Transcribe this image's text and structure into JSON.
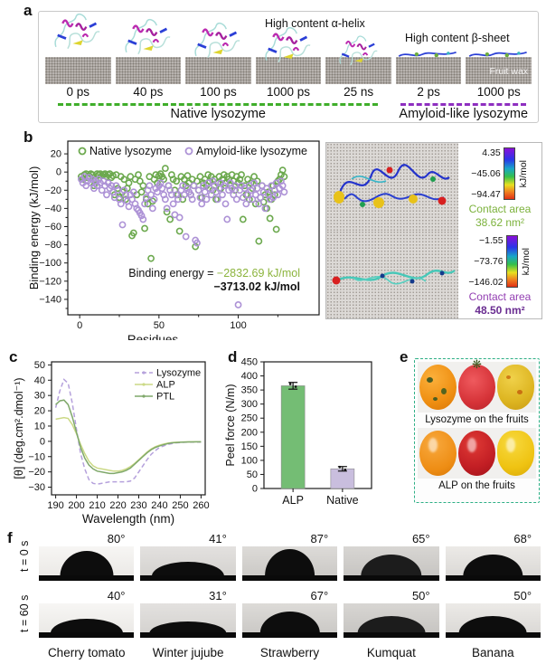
{
  "colors": {
    "green_accent": "#3fae2a",
    "purple_accent": "#8e2fc0",
    "scatter_green": "#6ca94e",
    "scatter_purple": "#ad92d6",
    "bar_green": "#74bd74",
    "bar_purple": "#c9bede",
    "dash_border_teal": "#2eb086",
    "text_green": "#8cb43d",
    "text_purple": "#7c3da6"
  },
  "panels": {
    "a": {
      "label": "a",
      "annotation_alpha": "High content α-helix",
      "annotation_beta": "High content β-sheet",
      "fruit_wax_label": "Fruit wax",
      "snapshots": [
        {
          "time": "0 ps",
          "group": "native"
        },
        {
          "time": "40 ps",
          "group": "native"
        },
        {
          "time": "100 ps",
          "group": "native"
        },
        {
          "time": "1000 ps",
          "group": "native"
        },
        {
          "time": "25 ns",
          "group": "native"
        },
        {
          "time": "2 ps",
          "group": "amyloid"
        },
        {
          "time": "1000 ps",
          "group": "amyloid",
          "wax": true
        }
      ],
      "groups": [
        {
          "name": "Native lysozyme",
          "color": "#3fae2a"
        },
        {
          "name": "Amyloid-like lysozyme",
          "color": "#8e2fc0"
        }
      ]
    },
    "b": {
      "label": "b",
      "annotation": {
        "prefix": "Binding energy = ",
        "value1": "−2832.69 kJ/mol",
        "value2": "−3713.02 kJ/mol",
        "color1": "#8cb43d",
        "color2": "#7c3da6"
      }
    },
    "b_right": {
      "cards": [
        {
          "colorbar_labels": [
            "4.35",
            "−45.06",
            "−94.47"
          ],
          "unit": "kJ/mol",
          "contact_label": "Contact area",
          "contact_value": "38.62 nm²",
          "theme": "green"
        },
        {
          "colorbar_labels": [
            "−1.55",
            "−73.76",
            "−146.02"
          ],
          "unit": "kJ/mol",
          "contact_label": "Contact area",
          "contact_value": "48.50 nm²",
          "theme": "purple"
        }
      ]
    },
    "c": {
      "label": "c"
    },
    "d": {
      "label": "d"
    },
    "e": {
      "label": "e",
      "captions": [
        "Lysozyme on the fruits",
        "ALP on the fruits"
      ]
    },
    "f": {
      "label": "f",
      "row_labels": [
        "t = 0 s",
        "t = 60 s"
      ],
      "angles_t0": [
        "80°",
        "41°",
        "87°",
        "65°",
        "68°"
      ],
      "angles_t60": [
        "40°",
        "31°",
        "67°",
        "50°",
        "50°"
      ],
      "columns": [
        "Cherry tomato",
        "Winter jujube",
        "Strawberry",
        "Kumquat",
        "Banana"
      ]
    }
  },
  "chart_data": [
    {
      "type": "scatter",
      "title": "",
      "xlabel": "Residues",
      "ylabel": "Binding energy (kJ/mol)",
      "xlim": [
        -7.5,
        151
      ],
      "ylim": [
        -157,
        34
      ],
      "xticks": [
        0,
        50,
        100
      ],
      "xminor": [
        25,
        75,
        125
      ],
      "yticks": [
        20,
        0,
        -20,
        -40,
        -60,
        -80,
        -100,
        -120,
        -140
      ],
      "legend_position": "top-inside",
      "grid": false,
      "series": [
        {
          "name": "Native lysozyme",
          "color": "#6ca94e",
          "y": [
            -5,
            -8,
            -3,
            -2,
            -6,
            -4,
            -2,
            -3,
            -15,
            -8,
            -2,
            -3,
            -2,
            -4,
            -3,
            -2,
            -5,
            -3,
            -2,
            -6,
            -4,
            -25,
            -3,
            -18,
            -28,
            -5,
            -22,
            -8,
            -30,
            -18,
            -12,
            -5,
            -70,
            -67,
            -8,
            -25,
            -3,
            -10,
            -22,
            -15,
            -62,
            -30,
            -35,
            -5,
            -95,
            -32,
            -8,
            -3,
            -12,
            -4,
            -2,
            -5,
            -8,
            4,
            -44,
            -15,
            -52,
            -3,
            -8,
            -20,
            -10,
            -25,
            -65,
            -5,
            -30,
            -8,
            -15,
            -4,
            -12,
            -25,
            -8,
            -15,
            -82,
            -10,
            -20,
            -5,
            -28,
            -12,
            -8,
            -15,
            -3,
            -10,
            -5,
            -20,
            -8,
            -30,
            -12,
            -5,
            -18,
            -8,
            -3,
            -12,
            -5,
            -8,
            -15,
            -3,
            -10,
            -20,
            -5,
            -12,
            -8,
            -3,
            -52,
            -15,
            -25,
            -8,
            -30,
            -12,
            -18,
            -5,
            -35,
            -10,
            -76,
            -28,
            -15,
            -33,
            -25,
            -40,
            -22,
            -51,
            -30,
            -15,
            -25,
            -63,
            -10,
            -8,
            -3,
            2,
            -5
          ]
        },
        {
          "name": "Amyloid-like lysozyme",
          "color": "#ad92d6",
          "y": [
            -8,
            -12,
            -5,
            -15,
            -10,
            -6,
            -12,
            -8,
            -18,
            -10,
            -15,
            -8,
            -12,
            -20,
            -10,
            -15,
            -25,
            -12,
            -18,
            -15,
            -22,
            -28,
            -15,
            -20,
            -30,
            -35,
            -58,
            -20,
            -25,
            -32,
            -38,
            -25,
            -30,
            -22,
            -35,
            -40,
            -42,
            -45,
            -48,
            -52,
            -35,
            -28,
            -20,
            -15,
            -25,
            -40,
            -30,
            -18,
            -22,
            -15,
            -12,
            -18,
            -25,
            -30,
            -40,
            -15,
            -20,
            -25,
            -35,
            -47,
            -25,
            -30,
            -50,
            -20,
            -15,
            -25,
            -71,
            -18,
            -22,
            -25,
            -30,
            -15,
            -75,
            -78,
            -20,
            -28,
            -35,
            -15,
            -22,
            -30,
            -12,
            -18,
            -25,
            -10,
            -15,
            -22,
            -30,
            -18,
            -12,
            -25,
            -15,
            -35,
            -52,
            -20,
            -12,
            -18,
            -25,
            -15,
            -30,
            -146,
            -20,
            -15,
            -28,
            -18,
            -35,
            -25,
            -15,
            -20,
            -30,
            -12,
            -25,
            -18,
            -35,
            -28,
            -15,
            -22,
            -40,
            -18,
            -25,
            -30,
            -15,
            -28,
            -20,
            -12,
            -25,
            -18,
            -10,
            -15,
            -22
          ]
        }
      ]
    },
    {
      "type": "line",
      "title": "",
      "xlabel": "Wavelength (nm)",
      "ylabel": "[θ] (deg.cm².dmol⁻¹)",
      "xlim": [
        188,
        262
      ],
      "ylim": [
        -35,
        52
      ],
      "xticks": [
        190,
        200,
        210,
        220,
        230,
        240,
        250,
        260
      ],
      "yticks": [
        50,
        40,
        30,
        20,
        10,
        0,
        -10,
        -20,
        -30
      ],
      "legend_position": "top-right-inside",
      "grid": false,
      "x": [
        190,
        192,
        194,
        196,
        198,
        200,
        202,
        204,
        206,
        208,
        210,
        212,
        214,
        216,
        218,
        220,
        222,
        224,
        226,
        228,
        230,
        232,
        234,
        236,
        238,
        240,
        242,
        244,
        246,
        248,
        250,
        252,
        254,
        256,
        258,
        260
      ],
      "series": [
        {
          "name": "Lysozyme",
          "color": "#b5a1dc",
          "dash": true,
          "values": [
            22,
            33,
            40.5,
            38,
            25,
            8,
            -8,
            -18,
            -25,
            -27.5,
            -28,
            -27.5,
            -27,
            -26.5,
            -26.5,
            -26.5,
            -26.5,
            -26.5,
            -26,
            -24,
            -20,
            -16,
            -12,
            -8.5,
            -6,
            -4,
            -3,
            -2,
            -1.5,
            -1,
            -0.8,
            -0.6,
            -0.5,
            -0.5,
            -0.5,
            -0.5
          ]
        },
        {
          "name": "ALP",
          "color": "#cbd986",
          "dash": false,
          "values": [
            14.5,
            15,
            15.5,
            15,
            11,
            5,
            -2,
            -8,
            -13,
            -16,
            -17.5,
            -18,
            -18.5,
            -19,
            -19.5,
            -19.5,
            -19,
            -18,
            -16.5,
            -14.5,
            -12,
            -9.5,
            -7,
            -5,
            -3.5,
            -2.5,
            -1.8,
            -1.2,
            -0.8,
            -0.6,
            -0.5,
            -0.4,
            -0.4,
            -0.3,
            -0.3,
            -0.3
          ]
        },
        {
          "name": "PTL",
          "color": "#7fa86a",
          "dash": false,
          "values": [
            24,
            26.5,
            27,
            24,
            16,
            6,
            -4,
            -11,
            -15.5,
            -18,
            -19.5,
            -20,
            -20.5,
            -21,
            -21,
            -20.5,
            -20,
            -19,
            -17.5,
            -15,
            -12.5,
            -10,
            -7.5,
            -5.5,
            -4,
            -3,
            -2.2,
            -1.5,
            -1,
            -0.8,
            -0.6,
            -0.5,
            -0.4,
            -0.4,
            -0.3,
            -0.3
          ]
        }
      ]
    },
    {
      "type": "bar",
      "title": "",
      "xlabel": "",
      "ylabel": "Peel force (N/m)",
      "categories": [
        "ALP",
        "Native"
      ],
      "values": [
        365,
        70
      ],
      "errors": [
        12,
        8
      ],
      "colors": [
        "#74bd74",
        "#c9bede"
      ],
      "ylim": [
        0,
        450
      ],
      "yticks": [
        0,
        50,
        100,
        150,
        200,
        250,
        300,
        350,
        400,
        450
      ],
      "grid": false
    }
  ]
}
